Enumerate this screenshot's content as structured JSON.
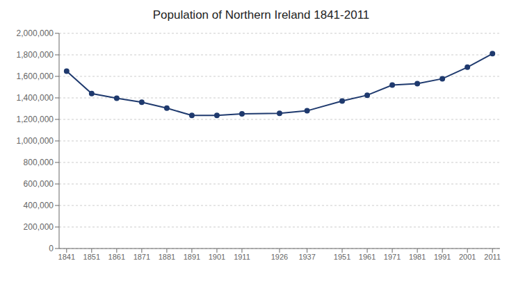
{
  "chart_data": {
    "type": "line",
    "title": "Population of Northern Ireland 1841-2011",
    "x": [
      1841,
      1851,
      1861,
      1871,
      1881,
      1891,
      1901,
      1911,
      1926,
      1937,
      1951,
      1961,
      1971,
      1981,
      1991,
      2001,
      2011
    ],
    "values": [
      1649000,
      1440000,
      1397000,
      1359000,
      1305000,
      1237000,
      1237000,
      1251000,
      1257000,
      1280000,
      1371000,
      1425000,
      1519000,
      1533000,
      1578000,
      1685000,
      1811000
    ],
    "color": "#1F3A6E",
    "marker": "circle",
    "xlim": [
      1838,
      2014
    ],
    "xticks": [
      1841,
      1851,
      1861,
      1871,
      1881,
      1891,
      1901,
      1911,
      1926,
      1937,
      1951,
      1961,
      1971,
      1981,
      1991,
      2001,
      2011
    ],
    "ylim": [
      0,
      2000000
    ],
    "yticks": [
      0,
      {
        "value": 200000,
        "label": "200,000"
      },
      {
        "value": 400000,
        "label": "400,000"
      },
      {
        "value": 600000,
        "label": "600,000"
      },
      {
        "value": 800000,
        "label": "800,000"
      },
      {
        "value": 1000000,
        "label": "1,000,000"
      },
      {
        "value": 1200000,
        "label": "1,200,000"
      },
      {
        "value": 1400000,
        "label": "1,400,000"
      },
      {
        "value": 1600000,
        "label": "1,600,000"
      },
      {
        "value": 1800000,
        "label": "1,800,000"
      },
      {
        "value": 2000000,
        "label": "2,000,000"
      }
    ],
    "grid": "y"
  }
}
